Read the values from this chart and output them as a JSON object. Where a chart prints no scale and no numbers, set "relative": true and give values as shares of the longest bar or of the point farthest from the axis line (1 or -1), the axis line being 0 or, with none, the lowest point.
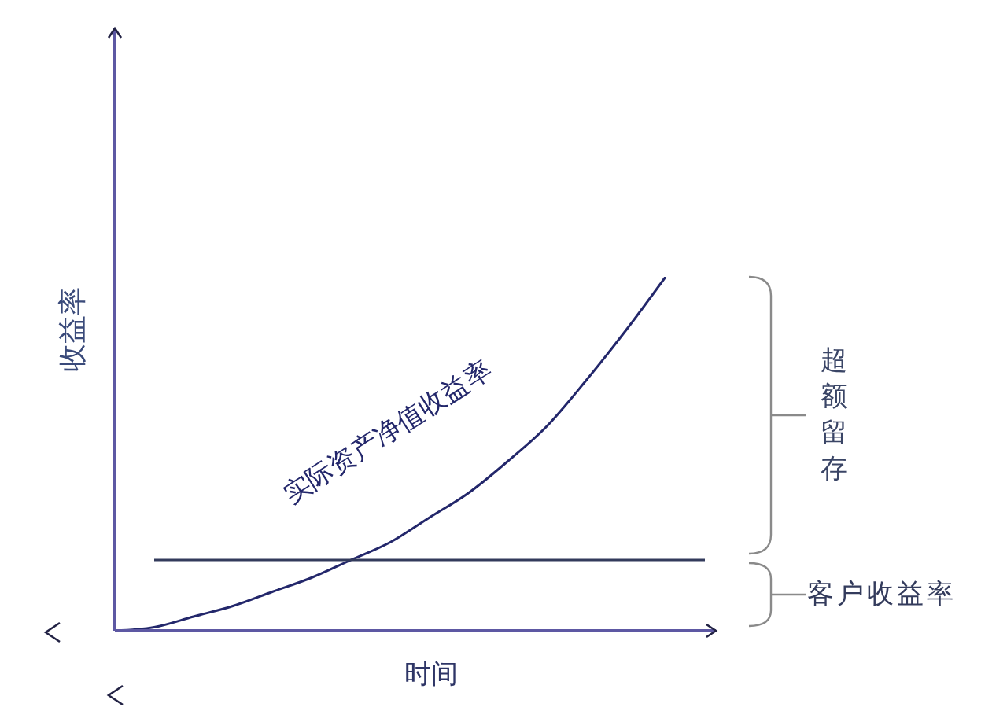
{
  "chart_data": {
    "type": "line",
    "relative": true,
    "xlabel": "时间",
    "ylabel": "收益率",
    "categories": [
      null,
      null,
      null,
      null,
      null,
      null,
      null,
      null,
      null,
      null,
      null,
      null,
      null,
      null,
      null,
      null
    ],
    "series": [
      {
        "name": "实际资产净值收益率",
        "color": "#23276b",
        "values": [
          0,
          0.01,
          0.04,
          0.07,
          0.11,
          0.15,
          0.2,
          0.25,
          0.32,
          0.39,
          0.48,
          0.58,
          0.71,
          0.85,
          1,
          null
        ]
      },
      {
        "name": "客户收益率",
        "color": "#333b5c",
        "values": [
          null,
          0.2,
          0.2,
          0.2,
          0.2,
          0.2,
          0.2,
          0.2,
          0.2,
          0.2,
          0.2,
          0.2,
          0.2,
          0.2,
          0.2,
          0.2
        ]
      }
    ],
    "annotations": [
      "超额留存"
    ],
    "legend": false,
    "marker": "none",
    "line_style": "solid"
  }
}
